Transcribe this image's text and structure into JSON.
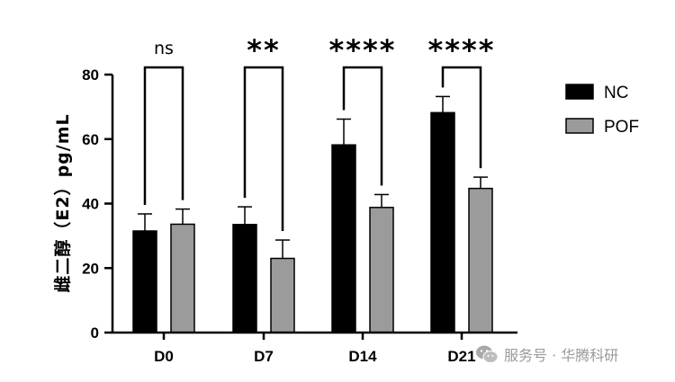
{
  "chart_data": {
    "type": "bar",
    "categories": [
      "D0",
      "D7",
      "D14",
      "D21"
    ],
    "series": [
      {
        "name": "NC",
        "color": "#000000",
        "values": [
          31.5,
          33.5,
          58.2,
          68.2
        ],
        "errors": [
          5.3,
          5.5,
          8.0,
          5.0
        ]
      },
      {
        "name": "POF",
        "color": "#9b9b9b",
        "values": [
          33.6,
          23.0,
          38.8,
          44.7
        ],
        "errors": [
          4.7,
          5.7,
          4.0,
          3.5
        ]
      }
    ],
    "significance": [
      "ns",
      "**",
      "****",
      "****"
    ],
    "ylabel": "雌二醇（E2）pg/mL",
    "ylim": [
      0,
      80
    ],
    "yticks": [
      0,
      20,
      40,
      60,
      80
    ],
    "legend_position": "right"
  },
  "watermark": {
    "icon": "wechat-icon",
    "text": "服务号 · 华腾科研"
  }
}
